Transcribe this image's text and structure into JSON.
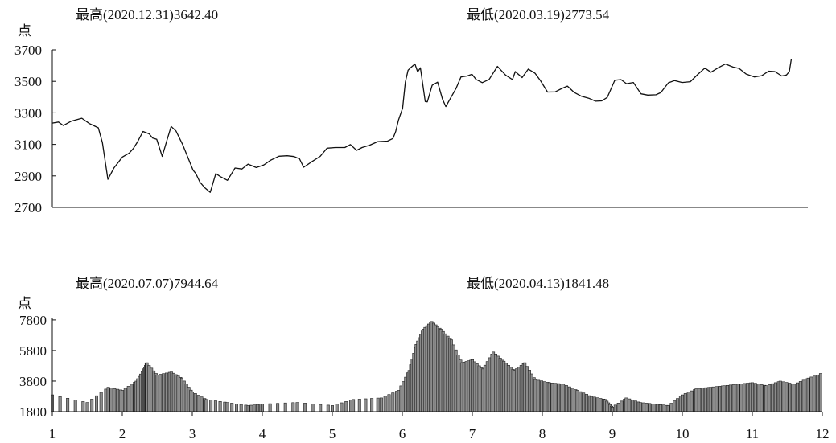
{
  "chart_data": [
    {
      "type": "line",
      "ylabel": "点",
      "annotation_high": "最高(2020.12.31)3642.40",
      "annotation_low": "最低(2020.03.19)2773.54",
      "ylim": [
        2700,
        3700
      ],
      "yticks": [
        2700,
        2900,
        3100,
        3300,
        3500,
        3700
      ],
      "xlim": [
        1,
        12
      ],
      "line_color": "#111111",
      "series": [
        {
          "x": [
            1.0,
            1.09,
            1.16,
            1.28,
            1.43,
            1.54,
            1.6,
            1.67,
            1.73,
            1.81,
            1.9,
            2.02,
            2.12,
            2.18,
            2.24,
            2.32,
            2.41,
            2.46,
            2.52,
            2.6,
            2.67,
            2.73,
            2.8,
            2.9,
            2.96,
            3.05,
            3.09,
            3.15,
            3.22,
            3.3,
            3.38,
            3.45,
            3.55,
            3.66,
            3.76,
            3.85,
            3.97,
            4.08,
            4.18,
            4.3,
            4.42,
            4.52,
            4.6,
            4.66,
            4.77,
            4.9,
            5.0,
            5.12,
            5.26,
            5.34,
            5.43,
            5.51,
            5.62,
            5.74,
            5.88,
            5.96,
            6.0,
            6.04,
            6.1,
            6.14,
            6.18,
            6.22,
            6.28,
            6.32,
            6.36,
            6.43,
            6.46,
            6.53,
            6.61,
            6.68,
            6.73,
            6.8,
            6.88,
            6.95,
            7.04,
            7.11,
            7.17,
            7.26,
            7.36,
            7.48,
            7.6,
            7.7,
            7.74,
            7.84,
            7.93,
            8.03,
            8.11,
            8.21,
            8.32,
            8.42,
            8.5,
            8.6,
            8.7,
            8.81,
            8.91,
            9.0,
            9.08,
            9.19,
            9.28,
            9.36,
            9.46,
            9.57,
            9.67,
            9.79,
            9.86,
            9.97,
            10.06,
            10.17,
            10.29,
            10.4,
            10.5,
            10.59,
            10.7,
            10.8,
            10.91,
            11.0,
            11.1,
            11.22,
            11.33,
            11.43,
            11.52,
            11.62,
            11.69,
            11.73,
            11.76
          ],
          "y": [
            3235,
            3242,
            3220,
            3248,
            3266,
            3232,
            3220,
            3205,
            3110,
            2878,
            2952,
            3020,
            3045,
            3074,
            3116,
            3182,
            3167,
            3141,
            3132,
            3024,
            3128,
            3214,
            3185,
            3097,
            3032,
            2936,
            2915,
            2860,
            2825,
            2796,
            2915,
            2895,
            2872,
            2950,
            2944,
            2975,
            2953,
            2970,
            3000,
            3025,
            3028,
            3023,
            3008,
            2955,
            2988,
            3024,
            3076,
            3080,
            3080,
            3099,
            3062,
            3080,
            3095,
            3118,
            3121,
            3138,
            3182,
            3253,
            3330,
            3496,
            3571,
            3588,
            3610,
            3560,
            3586,
            3372,
            3370,
            3475,
            3495,
            3388,
            3340,
            3395,
            3456,
            3528,
            3534,
            3545,
            3512,
            3492,
            3512,
            3595,
            3540,
            3511,
            3562,
            3524,
            3578,
            3551,
            3503,
            3432,
            3433,
            3455,
            3470,
            3429,
            3406,
            3393,
            3374,
            3376,
            3398,
            3507,
            3511,
            3485,
            3493,
            3421,
            3413,
            3415,
            3429,
            3491,
            3505,
            3493,
            3498,
            3545,
            3584,
            3558,
            3587,
            3610,
            3591,
            3582,
            3547,
            3528,
            3536,
            3565,
            3562,
            3534,
            3541,
            3562,
            3642
          ]
        }
      ]
    },
    {
      "type": "bar",
      "ylabel": "点",
      "annotation_high": "最高(2020.07.07)7944.64",
      "annotation_low": "最低(2020.04.13)1841.48",
      "ylim": [
        1800,
        7900
      ],
      "yticks": [
        1800,
        3800,
        5800,
        7800
      ],
      "xlim": [
        1,
        12
      ],
      "xticks": [
        "1",
        "2",
        "3",
        "4",
        "5",
        "6",
        "7",
        "8",
        "9",
        "10",
        "11",
        "12"
      ],
      "bar_fill": "#8c8c8c",
      "bar_stroke": "#222222",
      "x": [
        1.0,
        1.5,
        1.8,
        2.0,
        2.2,
        2.3,
        2.35,
        2.5,
        2.7,
        2.85,
        3.0,
        3.2,
        3.5,
        3.8,
        4.0,
        4.5,
        5.0,
        5.3,
        5.7,
        5.95,
        6.1,
        6.2,
        6.3,
        6.42,
        6.55,
        6.7,
        6.85,
        7.0,
        7.15,
        7.3,
        7.45,
        7.6,
        7.75,
        7.9,
        8.1,
        8.3,
        8.5,
        8.7,
        8.9,
        9.0,
        9.2,
        9.4,
        9.6,
        9.8,
        10.0,
        10.2,
        10.4,
        10.6,
        10.8,
        11.0,
        11.2,
        11.4,
        11.6,
        11.8,
        12.0
      ],
      "values": [
        2900,
        2400,
        3400,
        3200,
        3800,
        4500,
        5000,
        4200,
        4400,
        4000,
        3100,
        2600,
        2400,
        2200,
        2300,
        2400,
        2200,
        2600,
        2700,
        3200,
        4500,
        6200,
        7200,
        7700,
        7200,
        6500,
        5000,
        5200,
        4600,
        5700,
        5100,
        4500,
        5000,
        3900,
        3700,
        3600,
        3200,
        2800,
        2600,
        2100,
        2700,
        2400,
        2300,
        2200,
        2900,
        3300,
        3400,
        3500,
        3600,
        3700,
        3500,
        3800,
        3600,
        4000,
        4300
      ]
    }
  ]
}
